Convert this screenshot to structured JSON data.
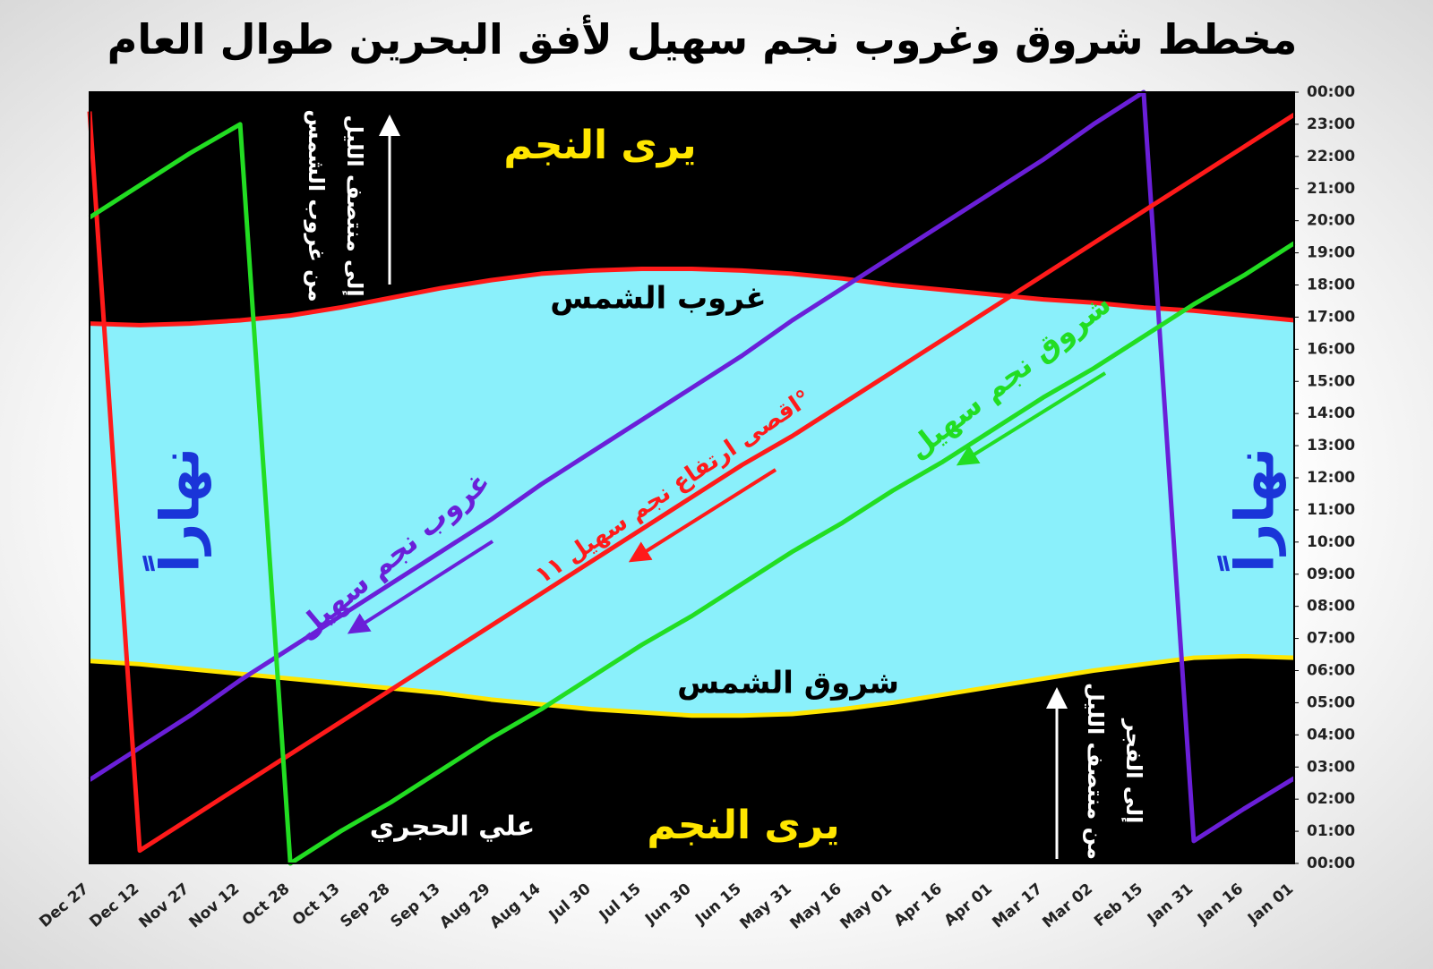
{
  "chart_data": {
    "type": "line",
    "title": "مخطط شروق وغروب نجم سهيل لأفق البحرين طوال العام",
    "categories": [
      "Dec 27",
      "Dec 12",
      "Nov 27",
      "Nov 12",
      "Oct 28",
      "Oct 13",
      "Sep 28",
      "Sep 13",
      "Aug 29",
      "Aug 14",
      "Jul 30",
      "Jul 15",
      "Jun 30",
      "Jun 15",
      "May 31",
      "May 16",
      "May 01",
      "Apr 16",
      "Apr 01",
      "Mar 17",
      "Mar 02",
      "Feb 15",
      "Jan 31",
      "Jan 16",
      "Jan 01"
    ],
    "ylim": [
      0,
      24
    ],
    "yticks": [
      {
        "value": 0,
        "label": "00:00"
      },
      {
        "value": 1,
        "label": "01:00"
      },
      {
        "value": 2,
        "label": "02:00"
      },
      {
        "value": 3,
        "label": "03:00"
      },
      {
        "value": 4,
        "label": "04:00"
      },
      {
        "value": 5,
        "label": "05:00"
      },
      {
        "value": 6,
        "label": "06:00"
      },
      {
        "value": 7,
        "label": "07:00"
      },
      {
        "value": 8,
        "label": "08:00"
      },
      {
        "value": 9,
        "label": "09:00"
      },
      {
        "value": 10,
        "label": "10:00"
      },
      {
        "value": 11,
        "label": "11:00"
      },
      {
        "value": 12,
        "label": "12:00"
      },
      {
        "value": 13,
        "label": "13:00"
      },
      {
        "value": 14,
        "label": "14:00"
      },
      {
        "value": 15,
        "label": "15:00"
      },
      {
        "value": 16,
        "label": "16:00"
      },
      {
        "value": 17,
        "label": "17:00"
      },
      {
        "value": 18,
        "label": "18:00"
      },
      {
        "value": 19,
        "label": "19:00"
      },
      {
        "value": 20,
        "label": "20:00"
      },
      {
        "value": 21,
        "label": "21:00"
      },
      {
        "value": 22,
        "label": "22:00"
      },
      {
        "value": 23,
        "label": "23:00"
      },
      {
        "value": 24,
        "label": "00:00"
      }
    ],
    "day_fill": "#8af0fb",
    "night_fill": "#000000",
    "series": [
      {
        "color": "#ff1a1a",
        "values": [
          16.8,
          16.75,
          16.8,
          16.9,
          17.05,
          17.3,
          17.6,
          17.9,
          18.15,
          18.35,
          18.45,
          18.5,
          18.5,
          18.45,
          18.35,
          18.2,
          18.0,
          17.85,
          17.7,
          17.55,
          17.45,
          17.3,
          17.2,
          17.05,
          16.9
        ]
      },
      {
        "color": "#ffe600",
        "values": [
          6.3,
          6.2,
          6.05,
          5.9,
          5.75,
          5.6,
          5.45,
          5.3,
          5.1,
          4.95,
          4.8,
          4.7,
          4.6,
          4.6,
          4.65,
          4.8,
          5.0,
          5.25,
          5.5,
          5.75,
          6.0,
          6.2,
          6.4,
          6.45,
          6.4
        ]
      },
      {
        "color": "#6a1fd8",
        "values": [
          2.6,
          3.6,
          4.6,
          5.7,
          6.7,
          7.7,
          8.7,
          9.7,
          10.7,
          11.8,
          12.8,
          13.8,
          14.8,
          15.8,
          16.9,
          17.9,
          18.9,
          19.9,
          20.9,
          21.9,
          23.0,
          24.0,
          0.7,
          1.7,
          2.65
        ]
      },
      {
        "color": "#ff1a1a",
        "values": [
          23.4,
          0.4,
          1.4,
          2.4,
          3.4,
          4.4,
          5.4,
          6.4,
          7.4,
          8.4,
          9.4,
          10.4,
          11.4,
          12.4,
          13.3,
          14.3,
          15.3,
          16.3,
          17.3,
          18.3,
          19.3,
          20.3,
          21.3,
          22.3,
          23.3
        ]
      },
      {
        "color": "#22dd22",
        "values": [
          20.1,
          21.1,
          22.1,
          23.0,
          0,
          1.0,
          1.9,
          2.9,
          3.9,
          4.8,
          5.8,
          6.8,
          7.7,
          8.7,
          9.7,
          10.6,
          11.6,
          12.5,
          13.5,
          14.5,
          15.4,
          16.4,
          17.4,
          18.3,
          19.3
        ]
      }
    ],
    "annotations": [
      "يرى النجم",
      "يرى النجم",
      "غروب الشمس",
      "شروق الشمس",
      "نهاراً",
      "نهاراً",
      "غروب نجم سهيل",
      "اقصى ارتفاع نجم سهيل ١١°",
      "شروق نجم سهيل",
      "من غروب الشمس",
      "إلى منتصف الليل",
      "من منتصف الليل",
      "إلى الفجر",
      "علي الحجري"
    ]
  }
}
